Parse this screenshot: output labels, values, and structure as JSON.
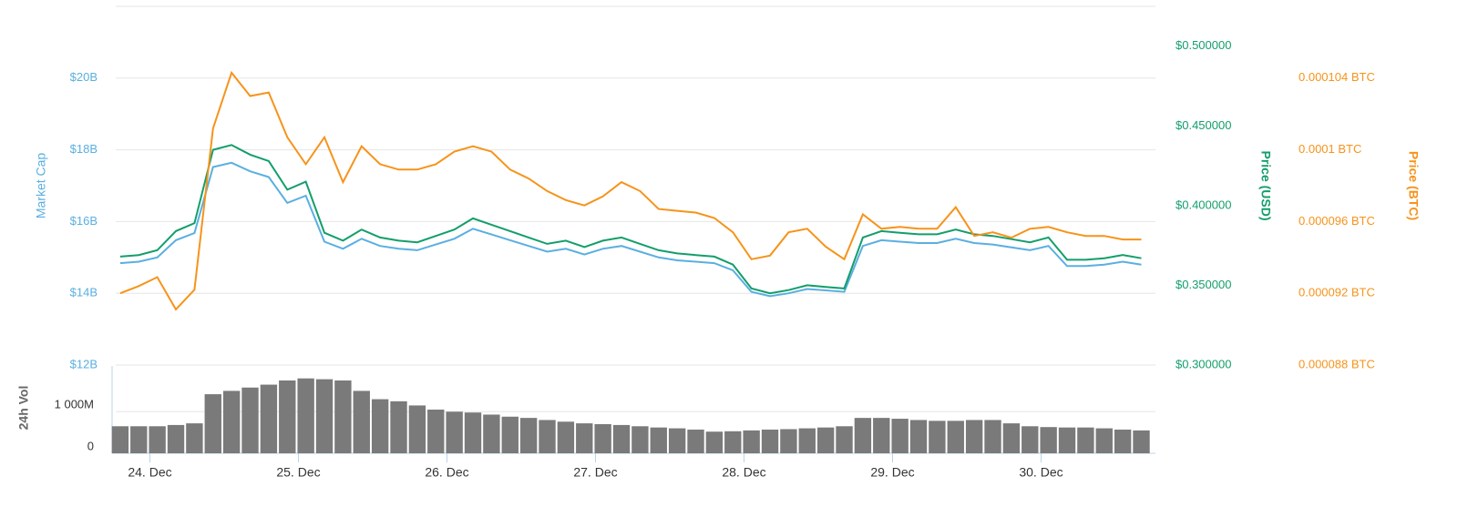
{
  "chart_data": [
    {
      "type": "line",
      "ylabel": "Market Cap",
      "y2label": "Price (USD)",
      "y3label": "Price (BTC)",
      "x": [
        23.8,
        23.925,
        24.05,
        24.175,
        24.3,
        24.425,
        24.55,
        24.675,
        24.8,
        24.925,
        25.05,
        25.175,
        25.3,
        25.425,
        25.55,
        25.675,
        25.8,
        25.925,
        26.05,
        26.175,
        26.3,
        26.425,
        26.55,
        26.675,
        26.8,
        26.925,
        27.05,
        27.175,
        27.3,
        27.425,
        27.55,
        27.675,
        27.8,
        27.925,
        28.05,
        28.175,
        28.3,
        28.425,
        28.55,
        28.675,
        28.8,
        28.925,
        29.05,
        29.175,
        29.3,
        29.425,
        29.55,
        29.675,
        29.8,
        29.925,
        30.05,
        30.175,
        30.3,
        30.425,
        30.55,
        30.675
      ],
      "xlim": [
        23.77,
        30.77
      ],
      "ylim": [
        12,
        22
      ],
      "yticks": [
        {
          "value": 12,
          "label": "$12B"
        },
        {
          "value": 14,
          "label": "$14B"
        },
        {
          "value": 16,
          "label": "$16B"
        },
        {
          "value": 18,
          "label": "$18B"
        },
        {
          "value": 20,
          "label": "$20B"
        }
      ],
      "y2lim": [
        0.3,
        0.525
      ],
      "y2ticks": [
        {
          "value": 0.3,
          "label": "$0.300000"
        },
        {
          "value": 0.35,
          "label": "$0.350000"
        },
        {
          "value": 0.4,
          "label": "$0.400000"
        },
        {
          "value": 0.45,
          "label": "$0.450000"
        },
        {
          "value": 0.5,
          "label": "$0.500000"
        }
      ],
      "y3lim": [
        8.8e-05,
        0.000108
      ],
      "y3ticks": [
        {
          "value": 8.8e-05,
          "label": "0.000088 BTC"
        },
        {
          "value": 9.2e-05,
          "label": "0.000092 BTC"
        },
        {
          "value": 9.6e-05,
          "label": "0.000096 BTC"
        },
        {
          "value": 0.0001,
          "label": "0.0001 BTC"
        },
        {
          "value": 0.000104,
          "label": "0.000104 BTC"
        }
      ],
      "grid": true,
      "series": [
        {
          "name": "Market Cap",
          "axis": "y",
          "color": "#5aafe0",
          "values": [
            14.84,
            14.88,
            15.0,
            15.48,
            15.68,
            17.52,
            17.64,
            17.4,
            17.24,
            16.52,
            16.72,
            15.44,
            15.24,
            15.52,
            15.32,
            15.24,
            15.2,
            15.36,
            15.52,
            15.8,
            15.64,
            15.48,
            15.32,
            15.16,
            15.24,
            15.08,
            15.24,
            15.32,
            15.16,
            15.0,
            14.92,
            14.88,
            14.84,
            14.64,
            14.04,
            13.92,
            14.0,
            14.12,
            14.08,
            14.04,
            15.32,
            15.48,
            15.44,
            15.4,
            15.4,
            15.52,
            15.4,
            15.36,
            15.28,
            15.2,
            15.32,
            14.76,
            14.76,
            14.8,
            14.88,
            14.8
          ]
        },
        {
          "name": "Price (USD)",
          "axis": "y2",
          "color": "#139e6b",
          "values": [
            0.368,
            0.369,
            0.372,
            0.384,
            0.389,
            0.435,
            0.438,
            0.432,
            0.428,
            0.41,
            0.415,
            0.383,
            0.378,
            0.385,
            0.38,
            0.378,
            0.377,
            0.381,
            0.385,
            0.392,
            0.388,
            0.384,
            0.38,
            0.376,
            0.378,
            0.374,
            0.378,
            0.38,
            0.376,
            0.372,
            0.37,
            0.369,
            0.368,
            0.363,
            0.348,
            0.345,
            0.347,
            0.35,
            0.349,
            0.348,
            0.38,
            0.384,
            0.383,
            0.382,
            0.382,
            0.385,
            0.382,
            0.381,
            0.379,
            0.377,
            0.38,
            0.366,
            0.366,
            0.367,
            0.369,
            0.367
          ]
        },
        {
          "name": "Price (BTC)",
          "axis": "y3",
          "color": "#f7931a",
          "values": [
            9.2e-05,
            9.24e-05,
            9.29e-05,
            9.11e-05,
            9.22e-05,
            0.0001012,
            0.0001043,
            0.000103,
            0.0001032,
            0.0001007,
            9.92e-05,
            0.0001007,
            9.82e-05,
            0.0001002,
            9.92e-05,
            9.89e-05,
            9.89e-05,
            9.92e-05,
            9.99e-05,
            0.0001002,
            9.99e-05,
            9.89e-05,
            9.84e-05,
            9.77e-05,
            9.72e-05,
            9.69e-05,
            9.74e-05,
            9.82e-05,
            9.77e-05,
            9.67e-05,
            9.66e-05,
            9.65e-05,
            9.62e-05,
            9.54e-05,
            9.39e-05,
            9.41e-05,
            9.54e-05,
            9.56e-05,
            9.46e-05,
            9.39e-05,
            9.64e-05,
            9.56e-05,
            9.57e-05,
            9.56e-05,
            9.56e-05,
            9.68e-05,
            9.52e-05,
            9.54e-05,
            9.51e-05,
            9.56e-05,
            9.57e-05,
            9.54e-05,
            9.52e-05,
            9.52e-05,
            9.5e-05,
            9.5e-05
          ]
        }
      ]
    },
    {
      "type": "bar",
      "ylabel": "24h Vol",
      "x": [
        23.8,
        23.925,
        24.05,
        24.175,
        24.3,
        24.425,
        24.55,
        24.675,
        24.8,
        24.925,
        25.05,
        25.175,
        25.3,
        25.425,
        25.55,
        25.675,
        25.8,
        25.925,
        26.05,
        26.175,
        26.3,
        26.425,
        26.55,
        26.675,
        26.8,
        26.925,
        27.05,
        27.175,
        27.3,
        27.425,
        27.55,
        27.675,
        27.8,
        27.925,
        28.05,
        28.175,
        28.3,
        28.425,
        28.55,
        28.675,
        28.8,
        28.925,
        29.05,
        29.175,
        29.3,
        29.425,
        29.55,
        29.675,
        29.8,
        29.925,
        30.05,
        30.175,
        30.3,
        30.425,
        30.55,
        30.675
      ],
      "xlim": [
        23.77,
        30.77
      ],
      "xticks": [
        {
          "value": 24,
          "label": "24. Dec"
        },
        {
          "value": 25,
          "label": "25. Dec"
        },
        {
          "value": 26,
          "label": "26. Dec"
        },
        {
          "value": 27,
          "label": "27. Dec"
        },
        {
          "value": 28,
          "label": "28. Dec"
        },
        {
          "value": 29,
          "label": "29. Dec"
        },
        {
          "value": 30,
          "label": "30. Dec"
        }
      ],
      "ylim": [
        0,
        2100
      ],
      "yticks": [
        0,
        {
          "value": 1000,
          "label": "1 000M"
        }
      ],
      "color": "#7a7a7a",
      "values": [
        650,
        650,
        650,
        680,
        720,
        1420,
        1500,
        1580,
        1650,
        1750,
        1800,
        1780,
        1750,
        1500,
        1300,
        1250,
        1150,
        1050,
        1000,
        980,
        930,
        880,
        850,
        800,
        760,
        720,
        700,
        680,
        650,
        620,
        600,
        570,
        520,
        530,
        550,
        570,
        580,
        600,
        620,
        650,
        850,
        850,
        830,
        800,
        780,
        780,
        800,
        800,
        720,
        650,
        630,
        620,
        620,
        600,
        570,
        550
      ]
    }
  ]
}
